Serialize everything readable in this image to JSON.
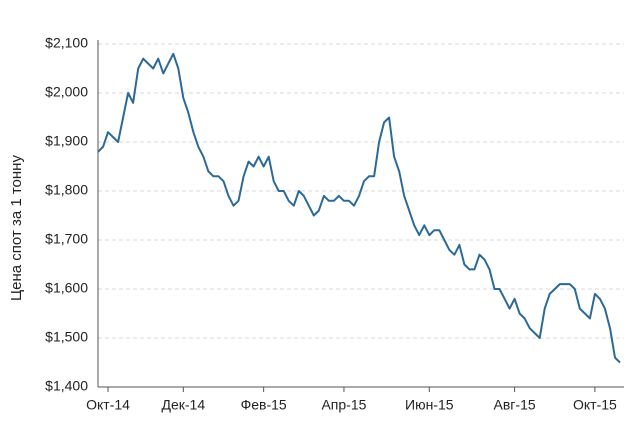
{
  "chart_data": {
    "type": "line",
    "y_axis_label": "Цена спот за 1 тонну",
    "categories": [
      null,
      null,
      "Окт-14",
      null,
      null,
      null,
      null,
      null,
      null,
      null,
      null,
      null,
      null,
      null,
      null,
      null,
      null,
      "Дек-14",
      null,
      null,
      null,
      null,
      null,
      null,
      null,
      null,
      null,
      null,
      null,
      null,
      null,
      null,
      null,
      "Фев-15",
      null,
      null,
      null,
      null,
      null,
      null,
      null,
      null,
      null,
      null,
      null,
      null,
      null,
      null,
      null,
      "Апр-15",
      null,
      null,
      null,
      null,
      null,
      null,
      null,
      null,
      null,
      null,
      null,
      null,
      null,
      null,
      null,
      null,
      "Июн-15",
      null,
      null,
      null,
      null,
      null,
      null,
      null,
      null,
      null,
      null,
      null,
      null,
      null,
      null,
      null,
      null,
      "Авг-15",
      null,
      null,
      null,
      null,
      null,
      null,
      null,
      null,
      null,
      null,
      null,
      null,
      null,
      null,
      null,
      "Окт-15",
      null,
      null,
      null,
      null,
      null
    ],
    "values": [
      1880,
      1890,
      1920,
      1910,
      1900,
      1950,
      2000,
      1980,
      2050,
      2070,
      2060,
      2050,
      2070,
      2040,
      2060,
      2080,
      2050,
      1990,
      1960,
      1920,
      1890,
      1870,
      1840,
      1830,
      1830,
      1820,
      1790,
      1770,
      1780,
      1830,
      1860,
      1850,
      1870,
      1850,
      1870,
      1820,
      1800,
      1800,
      1780,
      1770,
      1800,
      1790,
      1770,
      1750,
      1760,
      1790,
      1780,
      1780,
      1790,
      1780,
      1780,
      1770,
      1790,
      1820,
      1830,
      1830,
      1900,
      1940,
      1950,
      1870,
      1840,
      1790,
      1760,
      1730,
      1710,
      1730,
      1710,
      1720,
      1720,
      1700,
      1680,
      1670,
      1690,
      1650,
      1640,
      1640,
      1670,
      1660,
      1640,
      1600,
      1600,
      1580,
      1560,
      1580,
      1550,
      1540,
      1520,
      1510,
      1500,
      1560,
      1590,
      1600,
      1610,
      1610,
      1610,
      1600,
      1560,
      1550,
      1540,
      1590,
      1580,
      1560,
      1520,
      1460,
      1450
    ],
    "color": "#2b6a98",
    "ylim": [
      1400,
      2100
    ],
    "yticks": [
      {
        "value": 1400,
        "label": "$1,400"
      },
      {
        "value": 1500,
        "label": "$1,500"
      },
      {
        "value": 1600,
        "label": "$1,600"
      },
      {
        "value": 1700,
        "label": "$1,700"
      },
      {
        "value": 1800,
        "label": "$1,800"
      },
      {
        "value": 1900,
        "label": "$1,900"
      },
      {
        "value": 2000,
        "label": "$2,000"
      },
      {
        "value": 2100,
        "label": "$2,100"
      }
    ],
    "grid": true
  }
}
